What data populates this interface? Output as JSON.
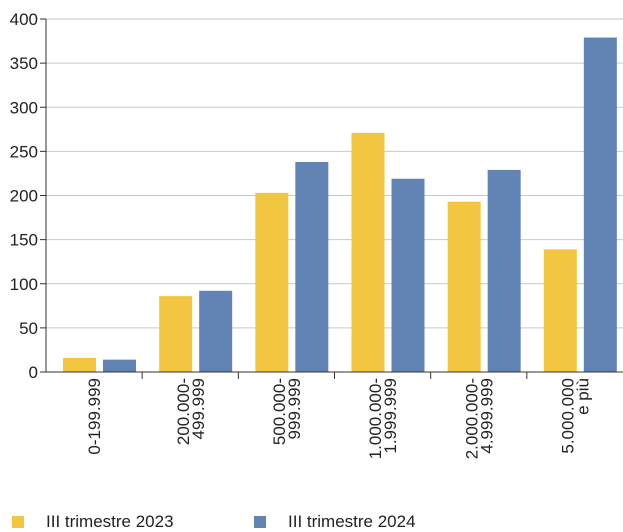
{
  "chart_data": {
    "type": "bar",
    "categories": [
      "0-199.999",
      "200.000-\n499.999",
      "500.000-\n999.999",
      "1.000.000-\n1.999.999",
      "2.000.000-\n4.999.999",
      "5.000.000\ne più"
    ],
    "series": [
      {
        "name": "III trimestre 2023",
        "values": [
          16,
          86,
          203,
          271,
          193,
          139
        ]
      },
      {
        "name": "III trimestre 2024",
        "values": [
          14,
          92,
          238,
          219,
          229,
          379
        ]
      }
    ],
    "ylim": [
      0,
      400
    ],
    "yticks": [
      0,
      50,
      100,
      150,
      200,
      250,
      300,
      350,
      400
    ],
    "grid": true,
    "legend_position": "bottom",
    "colors": {
      "series_2023": "#f2c641",
      "series_2024": "#6184b4",
      "grid": "#c9c9c9",
      "axis": "#333333"
    }
  }
}
